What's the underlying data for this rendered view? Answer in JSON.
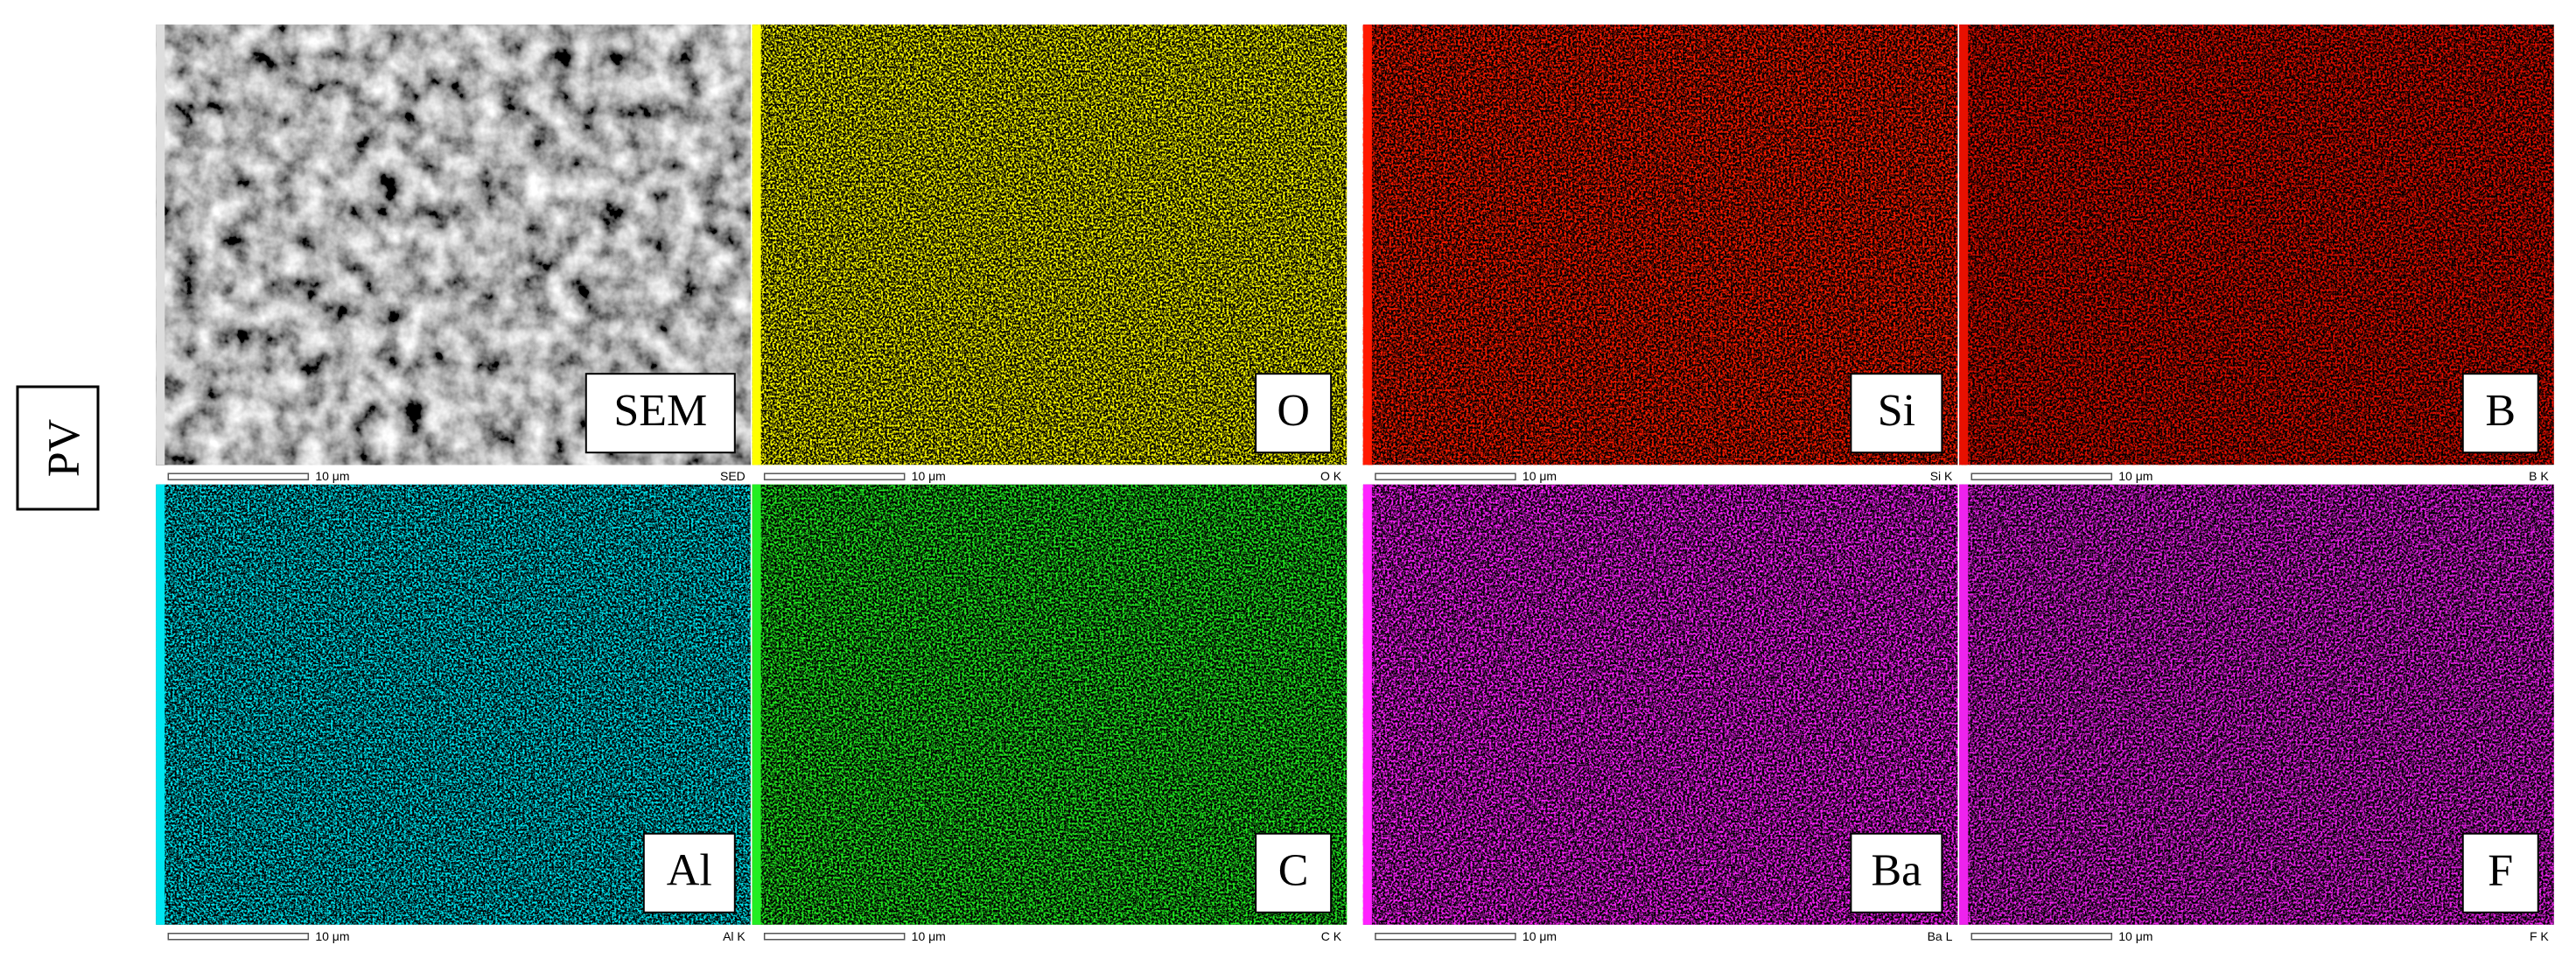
{
  "row_label": "PV",
  "panels": [
    {
      "label": "SEM",
      "scale_text": "10 μm",
      "detector": "SED",
      "color": "#b8b8b8"
    },
    {
      "label": "O",
      "scale_text": "10 μm",
      "detector": "O K",
      "color": "#ffff00"
    },
    {
      "label": "Si",
      "scale_text": "10 μm",
      "detector": "Si K",
      "color": "#ff1a00"
    },
    {
      "label": "B",
      "scale_text": "10 μm",
      "detector": "B K",
      "color": "#e81000"
    },
    {
      "label": "Al",
      "scale_text": "10 μm",
      "detector": "Al K",
      "color": "#00e5f0"
    },
    {
      "label": "C",
      "scale_text": "10 μm",
      "detector": "C K",
      "color": "#22ee22"
    },
    {
      "label": "Ba",
      "scale_text": "10 μm",
      "detector": "Ba L",
      "color": "#ff22ff"
    },
    {
      "label": "F",
      "scale_text": "10 μm",
      "detector": "F K",
      "color": "#ee22ee"
    }
  ]
}
